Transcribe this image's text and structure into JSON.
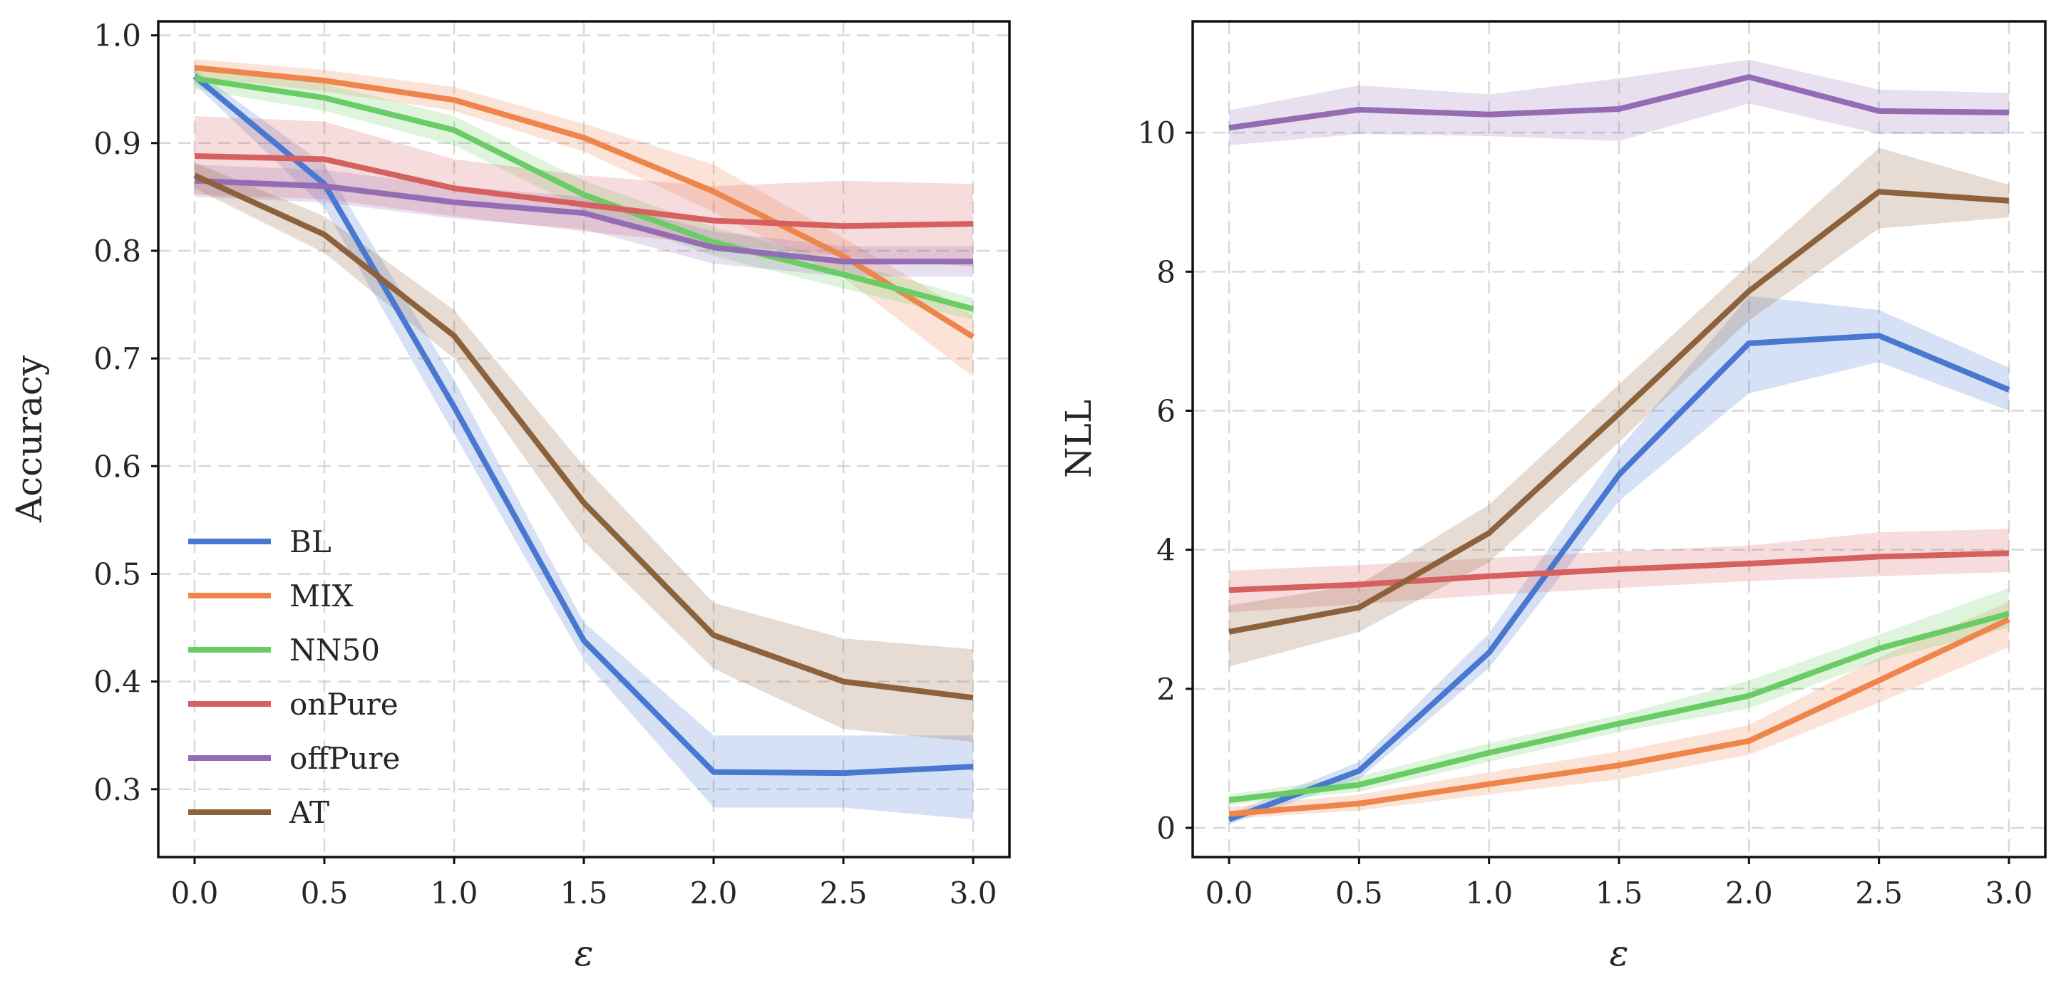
{
  "chart_data": [
    {
      "type": "line",
      "title": "",
      "xlabel": "ε",
      "ylabel": "Accuracy",
      "xlim": [
        -0.14,
        3.14
      ],
      "ylim": [
        0.237,
        1.013
      ],
      "xticks": [
        0.0,
        0.5,
        1.0,
        1.5,
        2.0,
        2.5,
        3.0
      ],
      "xtick_labels": [
        "0.0",
        "0.5",
        "1.0",
        "1.5",
        "2.0",
        "2.5",
        "3.0"
      ],
      "yticks": [
        0.3,
        0.4,
        0.5,
        0.6,
        0.7,
        0.8,
        0.9,
        1.0
      ],
      "ytick_labels": [
        "0.3",
        "0.4",
        "0.5",
        "0.6",
        "0.7",
        "0.8",
        "0.9",
        "1.0"
      ],
      "grid": true,
      "legend": "lower-left",
      "x": [
        0.0,
        0.5,
        1.0,
        1.5,
        2.0,
        2.5,
        3.0
      ],
      "series": [
        {
          "name": "BL",
          "color": "#4878d0",
          "values": [
            0.962,
            0.862,
            0.655,
            0.438,
            0.316,
            0.315,
            0.321
          ],
          "lower": [
            0.955,
            0.84,
            0.63,
            0.42,
            0.283,
            0.283,
            0.272
          ],
          "upper": [
            0.968,
            0.88,
            0.68,
            0.455,
            0.35,
            0.35,
            0.35
          ]
        },
        {
          "name": "MIX",
          "color": "#ee854a",
          "values": [
            0.97,
            0.958,
            0.94,
            0.905,
            0.855,
            0.795,
            0.72
          ],
          "lower": [
            0.962,
            0.948,
            0.93,
            0.892,
            0.836,
            0.775,
            0.683
          ],
          "upper": [
            0.978,
            0.968,
            0.952,
            0.918,
            0.88,
            0.812,
            0.74
          ]
        },
        {
          "name": "NN50",
          "color": "#6acc64",
          "values": [
            0.96,
            0.942,
            0.912,
            0.852,
            0.808,
            0.778,
            0.746
          ],
          "lower": [
            0.95,
            0.93,
            0.898,
            0.838,
            0.795,
            0.765,
            0.736
          ],
          "upper": [
            0.97,
            0.955,
            0.925,
            0.865,
            0.822,
            0.79,
            0.756
          ]
        },
        {
          "name": "onPure",
          "color": "#d65f5f",
          "values": [
            0.888,
            0.885,
            0.858,
            0.843,
            0.828,
            0.823,
            0.825
          ],
          "lower": [
            0.852,
            0.848,
            0.832,
            0.818,
            0.806,
            0.795,
            0.785
          ],
          "upper": [
            0.925,
            0.92,
            0.885,
            0.87,
            0.86,
            0.865,
            0.862
          ]
        },
        {
          "name": "offPure",
          "color": "#956cb4",
          "values": [
            0.865,
            0.86,
            0.845,
            0.835,
            0.803,
            0.79,
            0.79
          ],
          "lower": [
            0.85,
            0.845,
            0.83,
            0.82,
            0.788,
            0.776,
            0.776
          ],
          "upper": [
            0.88,
            0.875,
            0.86,
            0.85,
            0.818,
            0.804,
            0.804
          ]
        },
        {
          "name": "AT",
          "color": "#8c613c",
          "values": [
            0.87,
            0.815,
            0.721,
            0.566,
            0.443,
            0.4,
            0.385
          ],
          "lower": [
            0.858,
            0.798,
            0.7,
            0.53,
            0.412,
            0.356,
            0.344
          ],
          "upper": [
            0.882,
            0.832,
            0.745,
            0.6,
            0.473,
            0.44,
            0.43
          ]
        }
      ]
    },
    {
      "type": "line",
      "title": "",
      "xlabel": "ε",
      "ylabel": "NLL",
      "xlim": [
        -0.14,
        3.14
      ],
      "ylim": [
        -0.42,
        11.6
      ],
      "xticks": [
        0.0,
        0.5,
        1.0,
        1.5,
        2.0,
        2.5,
        3.0
      ],
      "xtick_labels": [
        "0.0",
        "0.5",
        "1.0",
        "1.5",
        "2.0",
        "2.5",
        "3.0"
      ],
      "yticks": [
        0,
        2,
        4,
        6,
        8,
        10
      ],
      "ytick_labels": [
        "0",
        "2",
        "4",
        "6",
        "8",
        "10"
      ],
      "grid": true,
      "x": [
        0.0,
        0.5,
        1.0,
        1.5,
        2.0,
        2.5,
        3.0
      ],
      "series": [
        {
          "name": "BL",
          "color": "#4878d0",
          "values": [
            0.12,
            0.82,
            2.52,
            5.08,
            6.97,
            7.08,
            6.3
          ],
          "lower": [
            0.05,
            0.7,
            2.3,
            4.7,
            6.25,
            6.7,
            6.0
          ],
          "upper": [
            0.2,
            0.95,
            2.8,
            5.45,
            7.65,
            7.45,
            6.62
          ]
        },
        {
          "name": "MIX",
          "color": "#ee854a",
          "values": [
            0.2,
            0.35,
            0.63,
            0.9,
            1.25,
            2.12,
            3.0
          ],
          "lower": [
            0.13,
            0.25,
            0.48,
            0.7,
            1.05,
            1.8,
            2.6
          ],
          "upper": [
            0.3,
            0.48,
            0.8,
            1.1,
            1.48,
            2.45,
            3.25
          ]
        },
        {
          "name": "NN50",
          "color": "#6acc64",
          "values": [
            0.4,
            0.62,
            1.08,
            1.5,
            1.9,
            2.58,
            3.08
          ],
          "lower": [
            0.33,
            0.52,
            0.95,
            1.38,
            1.72,
            2.4,
            2.88
          ],
          "upper": [
            0.48,
            0.74,
            1.22,
            1.62,
            2.12,
            2.78,
            3.45
          ]
        },
        {
          "name": "onPure",
          "color": "#d65f5f",
          "values": [
            3.42,
            3.5,
            3.62,
            3.72,
            3.8,
            3.9,
            3.95
          ],
          "lower": [
            3.1,
            3.22,
            3.35,
            3.45,
            3.55,
            3.62,
            3.68
          ],
          "upper": [
            3.7,
            3.78,
            3.88,
            3.98,
            4.06,
            4.25,
            4.3
          ]
        },
        {
          "name": "offPure",
          "color": "#956cb4",
          "values": [
            10.07,
            10.33,
            10.26,
            10.34,
            10.8,
            10.31,
            10.29
          ],
          "lower": [
            9.82,
            9.98,
            9.95,
            9.88,
            10.42,
            9.98,
            9.98
          ],
          "upper": [
            10.32,
            10.68,
            10.55,
            10.78,
            11.05,
            10.62,
            10.57
          ]
        },
        {
          "name": "AT",
          "color": "#8c613c",
          "values": [
            2.82,
            3.17,
            4.24,
            5.96,
            7.72,
            9.15,
            9.02
          ],
          "lower": [
            2.32,
            2.82,
            3.82,
            5.55,
            7.3,
            8.62,
            8.78
          ],
          "upper": [
            3.2,
            3.5,
            4.65,
            6.38,
            8.1,
            9.78,
            9.25
          ]
        }
      ]
    }
  ]
}
